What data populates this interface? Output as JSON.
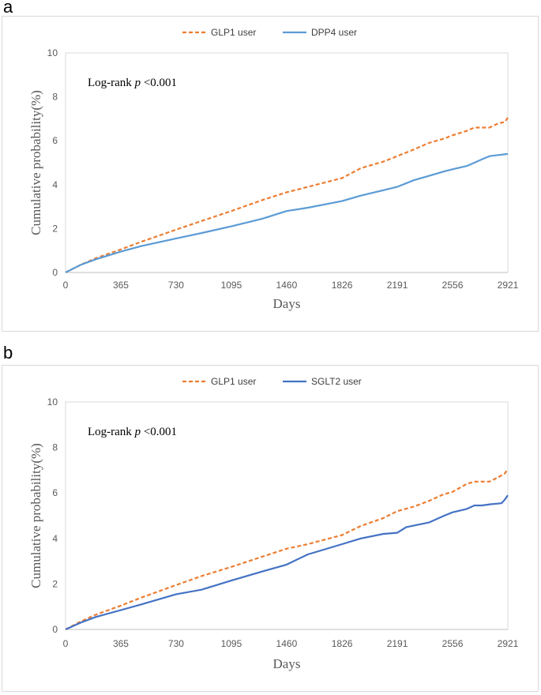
{
  "panels": [
    {
      "letter": "a"
    },
    {
      "letter": "b"
    }
  ],
  "chart_data": [
    {
      "type": "line",
      "panel": "a",
      "title": "",
      "xlabel": "Days",
      "ylabel": "Cumulative probability(%)",
      "annotation_prefix": "Log-rank ",
      "annotation_p": "p",
      "annotation_suffix": " <0.001",
      "xlim": [
        0,
        2921
      ],
      "ylim": [
        0,
        10
      ],
      "x_ticks": [
        0,
        365,
        730,
        1095,
        1460,
        1826,
        2191,
        2556,
        2921
      ],
      "y_ticks": [
        0,
        2,
        4,
        6,
        8,
        10
      ],
      "grid": "horizontal",
      "legend_position": "top",
      "series": [
        {
          "name": "GLP1 user",
          "color": "#ED7D31",
          "dash": "dashed",
          "x": [
            0,
            100,
            200,
            365,
            500,
            730,
            900,
            1095,
            1300,
            1460,
            1600,
            1826,
            1950,
            2100,
            2191,
            2300,
            2400,
            2500,
            2556,
            2650,
            2700,
            2800,
            2860,
            2900,
            2921
          ],
          "y": [
            0,
            0.35,
            0.65,
            1.05,
            1.4,
            1.95,
            2.35,
            2.8,
            3.3,
            3.65,
            3.9,
            4.3,
            4.75,
            5.05,
            5.3,
            5.6,
            5.9,
            6.1,
            6.25,
            6.45,
            6.6,
            6.6,
            6.8,
            6.85,
            7.05
          ]
        },
        {
          "name": "DPP4  user",
          "color": "#5B9BD5",
          "dash": "solid",
          "x": [
            0,
            100,
            200,
            365,
            500,
            730,
            900,
            1095,
            1300,
            1460,
            1600,
            1826,
            1950,
            2100,
            2191,
            2300,
            2400,
            2500,
            2556,
            2650,
            2700,
            2750,
            2800,
            2860,
            2921
          ],
          "y": [
            0,
            0.35,
            0.6,
            0.95,
            1.2,
            1.55,
            1.8,
            2.1,
            2.45,
            2.8,
            2.95,
            3.25,
            3.5,
            3.75,
            3.9,
            4.2,
            4.4,
            4.6,
            4.7,
            4.85,
            5.0,
            5.15,
            5.3,
            5.35,
            5.4
          ]
        }
      ]
    },
    {
      "type": "line",
      "panel": "b",
      "title": "",
      "xlabel": "Days",
      "ylabel": "Cumulative probability(%)",
      "annotation_prefix": "Log-rank ",
      "annotation_p": "p",
      "annotation_suffix": " <0.001",
      "xlim": [
        0,
        2921
      ],
      "ylim": [
        0,
        10
      ],
      "x_ticks": [
        0,
        365,
        730,
        1095,
        1460,
        1826,
        2191,
        2556,
        2921
      ],
      "y_ticks": [
        0,
        2,
        4,
        6,
        8,
        10
      ],
      "grid": "horizontal",
      "legend_position": "top",
      "series": [
        {
          "name": "GLP1 user",
          "color": "#ED7D31",
          "dash": "dashed",
          "x": [
            0,
            100,
            200,
            365,
            500,
            730,
            900,
            1095,
            1300,
            1460,
            1600,
            1826,
            1950,
            2100,
            2191,
            2300,
            2400,
            2500,
            2556,
            2650,
            2700,
            2800,
            2860,
            2900,
            2921
          ],
          "y": [
            0,
            0.35,
            0.65,
            1.05,
            1.4,
            1.95,
            2.35,
            2.75,
            3.2,
            3.55,
            3.75,
            4.15,
            4.55,
            4.9,
            5.2,
            5.4,
            5.65,
            5.95,
            6.05,
            6.4,
            6.5,
            6.5,
            6.7,
            6.85,
            7.05
          ]
        },
        {
          "name": "SGLT2 user",
          "color": "#4472C4",
          "dash": "solid",
          "x": [
            0,
            100,
            200,
            365,
            500,
            730,
            900,
            1095,
            1300,
            1460,
            1600,
            1826,
            1950,
            2100,
            2191,
            2250,
            2400,
            2500,
            2556,
            2650,
            2700,
            2750,
            2800,
            2880,
            2900,
            2921
          ],
          "y": [
            0,
            0.3,
            0.55,
            0.85,
            1.1,
            1.55,
            1.75,
            2.15,
            2.55,
            2.85,
            3.3,
            3.75,
            4.0,
            4.2,
            4.25,
            4.5,
            4.7,
            5.0,
            5.15,
            5.3,
            5.45,
            5.45,
            5.5,
            5.55,
            5.7,
            5.9
          ]
        }
      ]
    }
  ]
}
